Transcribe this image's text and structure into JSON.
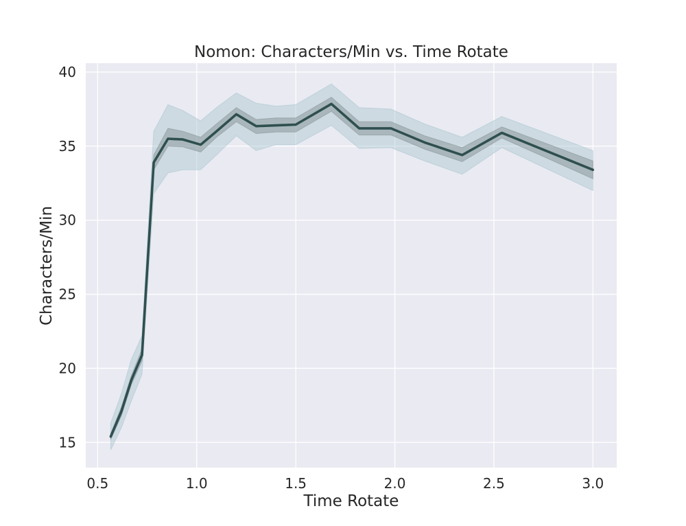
{
  "chart_data": {
    "type": "line",
    "title": "Nomon: Characters/Min vs. Time Rotate",
    "xlabel": "Time Rotate",
    "ylabel": "Characters/Min",
    "xlim": [
      0.44,
      3.12
    ],
    "ylim": [
      13.3,
      40.6
    ],
    "xticks": [
      0.5,
      1.0,
      1.5,
      2.0,
      2.5,
      3.0
    ],
    "xtick_labels": [
      "0.5",
      "1.0",
      "1.5",
      "2.0",
      "2.5",
      "3.0"
    ],
    "yticks": [
      15,
      20,
      25,
      30,
      35,
      40
    ],
    "ytick_labels": [
      "15",
      "20",
      "25",
      "30",
      "35",
      "40"
    ],
    "grid": true,
    "colors": {
      "background": "#eaeaf2",
      "grid": "#ffffff",
      "line": "#2f4f4f",
      "outer_band": "#a5c4cc",
      "inner_band": "#7f8c8d"
    },
    "series": [
      {
        "x": [
          0.566,
          0.62,
          0.67,
          0.724,
          0.783,
          0.855,
          0.93,
          1.02,
          1.1,
          1.2,
          1.3,
          1.4,
          1.5,
          1.68,
          1.82,
          1.98,
          2.15,
          2.34,
          2.54,
          3.0
        ],
        "y": [
          15.4,
          17.1,
          19.2,
          20.9,
          33.9,
          35.5,
          35.45,
          35.1,
          36.0,
          37.15,
          36.35,
          36.4,
          36.45,
          37.85,
          36.2,
          36.2,
          35.25,
          34.4,
          35.9,
          33.4
        ],
        "inner_low": [
          15.2,
          16.8,
          18.9,
          20.5,
          33.4,
          35.0,
          34.95,
          34.6,
          35.6,
          36.65,
          35.85,
          35.95,
          35.95,
          37.35,
          35.75,
          35.75,
          34.8,
          33.95,
          35.55,
          32.8
        ],
        "inner_high": [
          15.6,
          17.4,
          19.5,
          21.3,
          34.4,
          36.2,
          36.0,
          35.6,
          36.5,
          37.6,
          36.8,
          36.9,
          36.9,
          38.3,
          36.65,
          36.65,
          35.7,
          34.9,
          36.3,
          34.0
        ],
        "outer_low": [
          14.5,
          16.0,
          17.8,
          19.6,
          31.8,
          33.2,
          33.4,
          33.4,
          34.4,
          35.7,
          34.7,
          35.1,
          35.1,
          36.4,
          34.85,
          34.9,
          34.0,
          33.1,
          34.9,
          32.0
        ],
        "outer_high": [
          16.3,
          18.3,
          20.6,
          22.2,
          36.0,
          37.8,
          37.4,
          36.7,
          37.6,
          38.6,
          37.9,
          37.7,
          37.8,
          39.2,
          37.6,
          37.5,
          36.5,
          35.6,
          37.0,
          34.7
        ]
      }
    ]
  }
}
